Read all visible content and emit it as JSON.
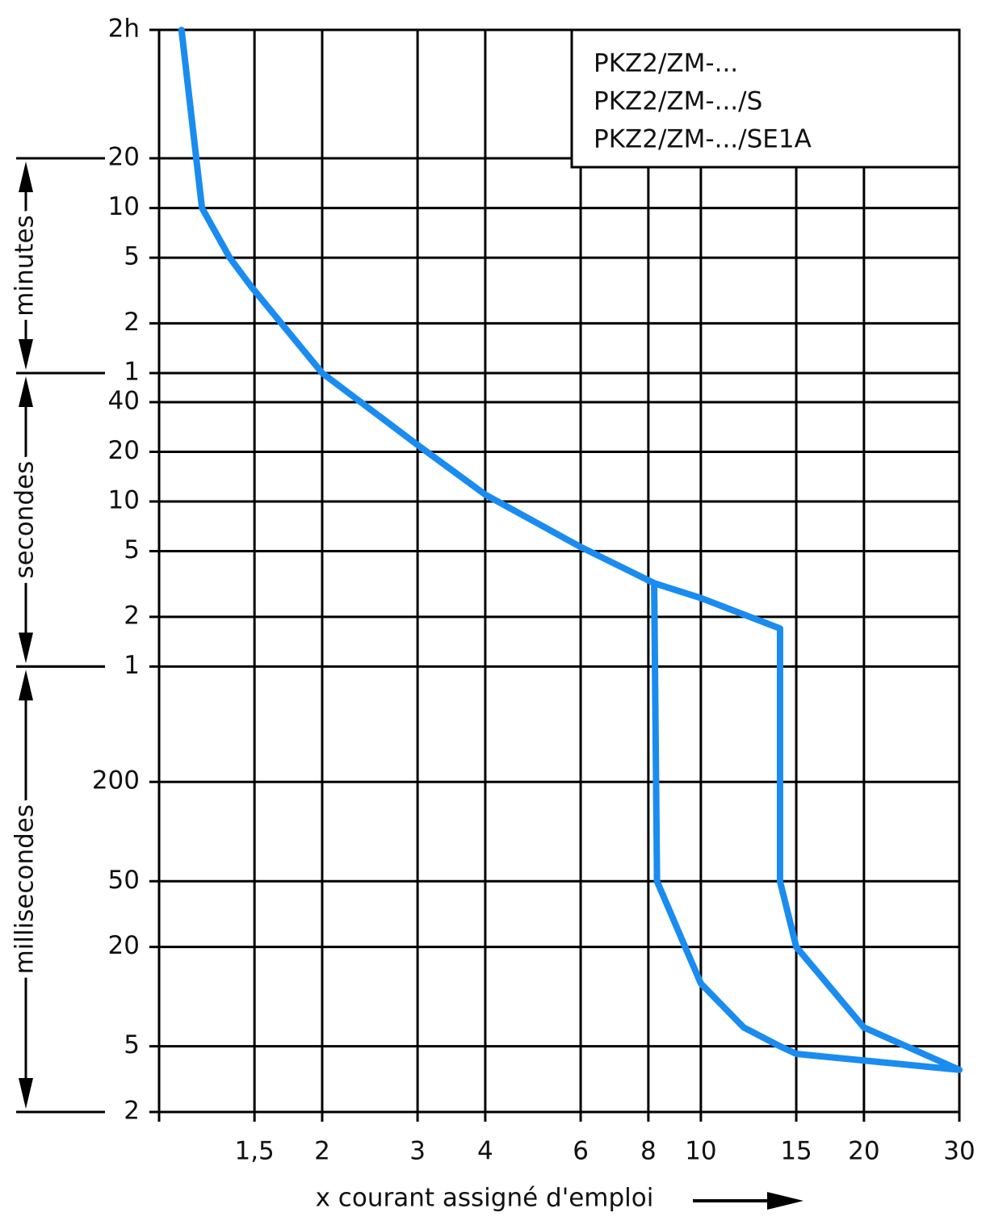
{
  "chart_data": {
    "type": "line",
    "annotation": [
      "PKZ2/ZM-...",
      "PKZ2/ZM-.../S",
      "PKZ2/ZM-.../SE1A"
    ],
    "x_label": "x courant assigné d'emploi",
    "x_log": true,
    "y_log": true,
    "grid": true,
    "xlim": [
      1,
      30
    ],
    "xticks": [
      {
        "value": 1.5,
        "label": "1,5"
      },
      2,
      3,
      4,
      6,
      8,
      10,
      15,
      20,
      30
    ],
    "ylim": [
      0.002,
      7200
    ],
    "yticks": [
      {
        "value": 7200,
        "label": "2h"
      },
      {
        "value": 1200,
        "label": "20"
      },
      {
        "value": 600,
        "label": "10"
      },
      {
        "value": 300,
        "label": "5"
      },
      {
        "value": 120,
        "label": "2"
      },
      {
        "value": 60,
        "label": "1"
      },
      40,
      20,
      10,
      5,
      2,
      1,
      {
        "value": 0.2,
        "label": "200"
      },
      {
        "value": 0.05,
        "label": "50"
      },
      {
        "value": 0.02,
        "label": "20"
      },
      {
        "value": 0.005,
        "label": "5"
      },
      {
        "value": 0.002,
        "label": "2"
      }
    ],
    "y_sections": [
      {
        "label": "minutes",
        "from": 1200,
        "to": 60
      },
      {
        "label": "secondes",
        "from": 60,
        "to": 1
      },
      {
        "label": "millisecondes",
        "from": 1,
        "to": 0.002
      }
    ],
    "x": [
      1.1,
      1.2,
      1.35,
      1.48,
      2,
      3,
      4,
      6,
      8.2,
      10,
      14,
      14,
      15,
      20,
      30,
      20,
      15,
      14,
      12,
      10,
      8.3,
      8.2
    ],
    "series": [
      {
        "color": "#1a8cf0",
        "values": [
          7200,
          600,
          300,
          200,
          60,
          22,
          11,
          5.3,
          3.2,
          2.6,
          1.7,
          0.05,
          0.02,
          0.0065,
          0.0036,
          0.0041,
          0.0045,
          0.005,
          0.0065,
          0.012,
          0.05,
          3.2
        ]
      }
    ]
  }
}
